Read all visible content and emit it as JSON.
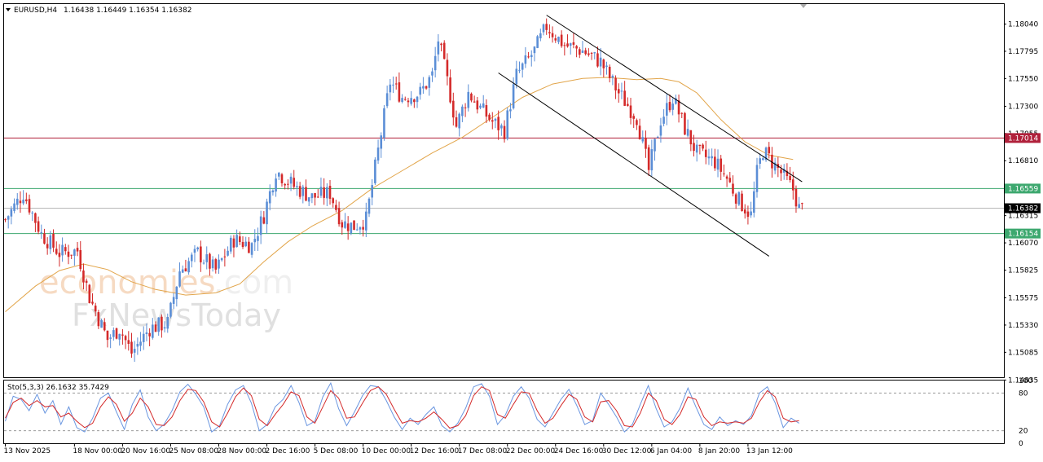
{
  "header": {
    "title": "EURUSD,H4",
    "ohlc": "1.16438 1.16449 1.16354 1.16382"
  },
  "watermark": {
    "line1a": "economies",
    "line1b": ".com",
    "line2": "FxNewsToday"
  },
  "colors": {
    "bull": "#5b8ed6",
    "bear": "#d42a2a",
    "ma": "#e2a54a",
    "resistance": "#b0203a",
    "support": "#3da86f",
    "current": "#b8b8b8",
    "stoch_main": "#6a96e0",
    "stoch_signal": "#d42a2a"
  },
  "chart_data": [
    {
      "type": "candlestick",
      "symbol": "EURUSD",
      "timeframe": "H4",
      "ylim": [
        1.1486,
        1.1822
      ],
      "y_ticks": [
        1.1804,
        1.17795,
        1.1755,
        1.173,
        1.17055,
        1.1681,
        1.16315,
        1.1607,
        1.15825,
        1.15575,
        1.1533,
        1.15085,
        1.14835
      ],
      "x_tick_labels": [
        "13 Nov 2025",
        "18 Nov 00:00",
        "20 Nov 16:00",
        "25 Nov 08:00",
        "28 Nov 00:00",
        "2 Dec 16:00",
        "5 Dec 08:00",
        "10 Dec 00:00",
        "12 Dec 16:00",
        "17 Dec 08:00",
        "22 Dec 00:00",
        "24 Dec 16:00",
        "30 Dec 12:00",
        "6 Jan 04:00",
        "8 Jan 20:00",
        "13 Jan 12:00"
      ],
      "x_tick_index": [
        0,
        23,
        39,
        55,
        71,
        87,
        103,
        119,
        135,
        151,
        167,
        183,
        199,
        215,
        231,
        247
      ],
      "close_path": [
        [
          0,
          1.1628
        ],
        [
          6,
          1.1652
        ],
        [
          12,
          1.1615
        ],
        [
          18,
          1.1598
        ],
        [
          24,
          1.16
        ],
        [
          28,
          1.1558
        ],
        [
          34,
          1.152
        ],
        [
          38,
          1.153
        ],
        [
          42,
          1.1508
        ],
        [
          48,
          1.153
        ],
        [
          54,
          1.1535
        ],
        [
          58,
          1.1582
        ],
        [
          64,
          1.1598
        ],
        [
          70,
          1.1582
        ],
        [
          76,
          1.161
        ],
        [
          82,
          1.1605
        ],
        [
          86,
          1.1632
        ],
        [
          90,
          1.1672
        ],
        [
          96,
          1.1658
        ],
        [
          102,
          1.1648
        ],
        [
          108,
          1.1652
        ],
        [
          112,
          1.1625
        ],
        [
          116,
          1.1622
        ],
        [
          120,
          1.1628
        ],
        [
          124,
          1.169
        ],
        [
          128,
          1.1752
        ],
        [
          132,
          1.1738
        ],
        [
          138,
          1.1742
        ],
        [
          142,
          1.1758
        ],
        [
          144,
          1.179
        ],
        [
          148,
          1.174
        ],
        [
          150,
          1.1712
        ],
        [
          154,
          1.1742
        ],
        [
          158,
          1.1728
        ],
        [
          162,
          1.1716
        ],
        [
          166,
          1.1708
        ],
        [
          170,
          1.1758
        ],
        [
          176,
          1.178
        ],
        [
          180,
          1.1802
        ],
        [
          186,
          1.1785
        ],
        [
          192,
          1.178
        ],
        [
          198,
          1.177
        ],
        [
          204,
          1.1742
        ],
        [
          210,
          1.172
        ],
        [
          214,
          1.1672
        ],
        [
          218,
          1.1718
        ],
        [
          222,
          1.1738
        ],
        [
          226,
          1.171
        ],
        [
          230,
          1.1688
        ],
        [
          236,
          1.168
        ],
        [
          240,
          1.1665
        ],
        [
          244,
          1.1645
        ],
        [
          248,
          1.1632
        ],
        [
          250,
          1.167
        ],
        [
          252,
          1.169
        ],
        [
          258,
          1.167
        ],
        [
          262,
          1.1655
        ],
        [
          264,
          1.1638
        ]
      ],
      "moving_average_path": [
        [
          0,
          1.1545
        ],
        [
          10,
          1.1568
        ],
        [
          18,
          1.1582
        ],
        [
          26,
          1.1588
        ],
        [
          34,
          1.1583
        ],
        [
          42,
          1.1572
        ],
        [
          50,
          1.1565
        ],
        [
          60,
          1.156
        ],
        [
          70,
          1.1562
        ],
        [
          78,
          1.157
        ],
        [
          86,
          1.159
        ],
        [
          94,
          1.1608
        ],
        [
          102,
          1.1622
        ],
        [
          112,
          1.1636
        ],
        [
          122,
          1.1656
        ],
        [
          132,
          1.1672
        ],
        [
          142,
          1.1688
        ],
        [
          152,
          1.1702
        ],
        [
          162,
          1.172
        ],
        [
          172,
          1.1738
        ],
        [
          182,
          1.175
        ],
        [
          192,
          1.1755
        ],
        [
          200,
          1.1756
        ],
        [
          210,
          1.1754
        ],
        [
          218,
          1.1755
        ],
        [
          224,
          1.1752
        ],
        [
          230,
          1.1742
        ],
        [
          238,
          1.1718
        ],
        [
          246,
          1.1698
        ],
        [
          254,
          1.1686
        ],
        [
          262,
          1.1682
        ]
      ],
      "channel_upper": [
        [
          180,
          1.1812
        ],
        [
          265,
          1.1662
        ]
      ],
      "channel_lower": [
        [
          164,
          1.176
        ],
        [
          254,
          1.1595
        ]
      ],
      "horizontal_lines": [
        {
          "role": "resistance",
          "value": 1.17014,
          "label": "1.17014"
        },
        {
          "role": "support",
          "value": 1.16559,
          "label": "1.16559"
        },
        {
          "role": "current",
          "value": 1.16382,
          "label": "1.16382"
        },
        {
          "role": "support",
          "value": 1.16154,
          "label": "1.16154"
        }
      ],
      "candle_count": 266
    },
    {
      "type": "line",
      "indicator": "stochastic",
      "title": "Sto(5,3,3) 26.1632 35.7429",
      "ylim": [
        0,
        100
      ],
      "y_ticks": [
        100,
        80,
        20,
        0
      ],
      "levels": [
        80,
        20
      ],
      "series": [
        {
          "name": "main",
          "values": [
            35,
            75,
            70,
            52,
            78,
            48,
            68,
            30,
            58,
            25,
            18,
            40,
            72,
            80,
            50,
            22,
            62,
            85,
            42,
            20,
            30,
            52,
            82,
            94,
            78,
            58,
            18,
            28,
            62,
            85,
            92,
            64,
            20,
            30,
            58,
            70,
            92,
            65,
            28,
            35,
            74,
            96,
            55,
            28,
            50,
            76,
            92,
            90,
            68,
            42,
            22,
            40,
            30,
            46,
            58,
            28,
            18,
            32,
            56,
            90,
            95,
            75,
            30,
            45,
            75,
            90,
            72,
            38,
            26,
            48,
            70,
            86,
            60,
            30,
            36,
            80,
            62,
            42,
            18,
            30,
            62,
            92,
            55,
            26,
            34,
            56,
            88,
            58,
            30,
            22,
            42,
            28,
            36,
            30,
            44,
            80,
            90,
            64,
            25,
            40,
            32
          ]
        },
        {
          "name": "signal",
          "values": [
            40,
            65,
            72,
            60,
            68,
            58,
            60,
            42,
            48,
            35,
            25,
            32,
            58,
            74,
            62,
            35,
            48,
            72,
            58,
            30,
            28,
            42,
            68,
            86,
            84,
            66,
            34,
            26,
            48,
            74,
            88,
            76,
            38,
            28,
            46,
            62,
            82,
            76,
            42,
            32,
            58,
            84,
            72,
            40,
            42,
            64,
            84,
            90,
            78,
            54,
            32,
            36,
            34,
            40,
            50,
            38,
            24,
            28,
            44,
            76,
            90,
            84,
            46,
            40,
            62,
            82,
            80,
            52,
            32,
            40,
            60,
            78,
            70,
            42,
            34,
            66,
            68,
            52,
            28,
            26,
            48,
            80,
            68,
            38,
            30,
            46,
            74,
            70,
            42,
            28,
            34,
            32,
            34,
            32,
            40,
            66,
            84,
            74,
            40,
            34,
            36
          ]
        }
      ]
    }
  ]
}
